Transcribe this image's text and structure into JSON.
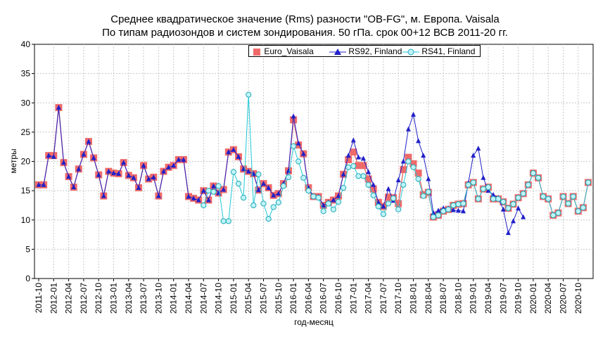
{
  "chart_data": {
    "type": "line",
    "title": "Среднее квадратическое значение (Rms) разности \"OB-FG\", м. Европа. Vaisala",
    "subtitle": "По типам радиозондов и систем зондирования. 50 гПа. срок 00+12 ВСВ 2011-20 гг.",
    "xlabel": "год-месяц",
    "ylabel": "метры",
    "ylim": [
      0,
      40
    ],
    "yticks": [
      0,
      5,
      10,
      15,
      20,
      25,
      30,
      35,
      40
    ],
    "grid": true,
    "legend_position": "top-center",
    "x_start": "2011-10",
    "x_count": 111,
    "xtick_labels": [
      "2011-10",
      "2012-01",
      "2012-04",
      "2012-07",
      "2012-10",
      "2013-01",
      "2013-04",
      "2013-07",
      "2013-10",
      "2014-01",
      "2014-04",
      "2014-07",
      "2014-10",
      "2015-01",
      "2015-04",
      "2015-07",
      "2015-10",
      "2016-01",
      "2016-04",
      "2016-07",
      "2016-10",
      "2017-01",
      "2017-04",
      "2017-07",
      "2017-10",
      "2018-01",
      "2018-04",
      "2018-07",
      "2018-10",
      "2019-01",
      "2019-04",
      "2019-07",
      "2019-10",
      "2020-01",
      "2020-04",
      "2020-07",
      "2020-10"
    ],
    "series": [
      {
        "name": "Euro_Vaisala",
        "color": "#f06a6a",
        "marker": "square",
        "start_index": 0,
        "values": [
          16,
          16,
          21,
          21,
          29.2,
          19.8,
          17.4,
          15.6,
          18.7,
          21.2,
          23.4,
          20.6,
          17.7,
          14.1,
          18.3,
          18,
          17.9,
          19.8,
          17.6,
          17.2,
          15.5,
          19.3,
          17,
          17.3,
          14.1,
          18.3,
          19,
          19.3,
          20.3,
          20.3,
          14,
          13.7,
          13.4,
          15,
          13.4,
          15.8,
          14.6,
          15.2,
          21.6,
          22,
          20.8,
          18.7,
          18.3,
          17.9,
          15.1,
          16.2,
          15.5,
          14.2,
          14.5,
          16.2,
          18.4,
          27.1,
          22.8,
          21.3,
          15.5,
          14,
          14,
          12.5,
          13,
          13.4,
          14.1,
          17.8,
          20.3,
          21.6,
          19.3,
          19.3,
          17,
          15.3,
          13,
          12.3,
          13.9,
          13.8,
          12.8,
          18.6,
          20.7,
          19.6,
          18,
          14.3,
          14.7,
          10.5,
          10.8,
          11.5,
          11.8,
          12.5,
          12.7,
          12.8,
          16,
          16.4,
          13.6,
          15.3,
          15.6,
          13.6,
          13.6,
          13.1,
          12,
          12.7,
          13.8,
          14.5,
          16,
          18,
          17.2,
          14,
          13.6,
          10.8,
          11.2,
          14,
          12.8,
          14,
          11.5,
          12.1,
          16.4
        ]
      },
      {
        "name": "RS92, Finland",
        "color": "#2020c8",
        "marker": "triangle",
        "start_index": 0,
        "values": [
          16,
          16,
          21,
          20.8,
          29.2,
          19.8,
          17.4,
          15.6,
          18.7,
          21.2,
          23.4,
          20.6,
          17.7,
          14.1,
          18.3,
          18,
          17.9,
          19.8,
          17.6,
          17.2,
          15.5,
          19.3,
          17,
          17.3,
          14.1,
          18.3,
          19,
          19.3,
          20.3,
          20.3,
          14,
          13.7,
          13.4,
          15,
          13.4,
          15.8,
          14.6,
          15.2,
          21.6,
          22,
          20.8,
          18.7,
          18.3,
          17.9,
          15.1,
          16.2,
          15.5,
          14.2,
          14.5,
          16.2,
          18.4,
          27.7,
          23.1,
          21.3,
          15.5,
          14,
          14,
          12.5,
          13,
          13.4,
          14.1,
          17.8,
          21,
          23.6,
          20.7,
          20.5,
          18.2,
          16,
          13,
          12.3,
          15.3,
          13.3,
          16.8,
          20,
          25.5,
          28,
          23.5,
          21,
          17,
          11.2,
          11.6,
          12,
          12,
          11.7,
          11.6,
          11.5,
          16.3,
          21,
          22.2,
          17.2,
          15,
          14.3,
          13.8,
          11.8,
          7.8,
          9.8,
          12,
          10.5
        ]
      },
      {
        "name": "RS41, Finland",
        "color": "#20c8d8",
        "marker": "circle",
        "start_index": 33,
        "values": [
          12.5,
          15,
          14.8,
          15.8,
          9.8,
          9.8,
          18.2,
          16.2,
          13.8,
          31.4,
          12.5,
          17.8,
          12.8,
          10.2,
          12.2,
          13,
          15.8,
          17.3,
          22.6,
          20,
          17.2,
          15,
          14,
          13.8,
          11.5,
          12.8,
          11.8,
          13.1,
          15.5,
          19,
          19.2,
          17.5,
          17.5,
          16,
          14.2,
          12.3,
          11,
          12.8,
          13.7,
          11.8,
          16,
          20,
          19,
          17,
          14.1,
          14.8,
          10.5,
          10.8,
          11.5,
          11.8,
          12.5,
          12.7,
          12.8,
          16,
          16.4,
          13.6,
          15.3,
          15.6,
          13.6,
          13.6,
          13.1,
          12,
          12.7,
          13.8,
          14.5,
          16,
          18,
          17.2,
          14,
          13.6,
          10.8,
          11.2,
          14,
          12.8,
          14,
          11.5,
          12.1,
          16.4
        ]
      }
    ]
  }
}
